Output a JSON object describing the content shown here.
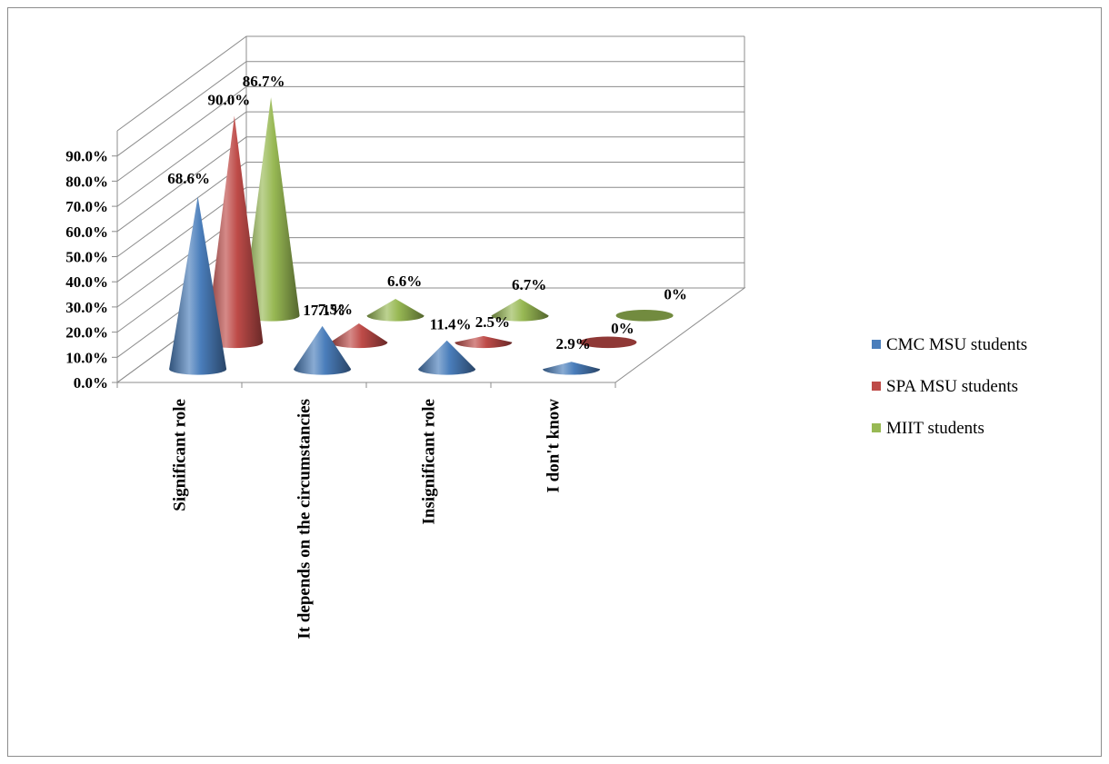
{
  "chart_data": {
    "type": "bar",
    "style": "3d-cone",
    "categories": [
      "Significant role",
      "It depends on the circumstancies",
      "Insignificant role",
      "I don't know"
    ],
    "series": [
      {
        "name": "CMC MSU students",
        "color": "#4a7ebb",
        "values": [
          68.6,
          17.1,
          11.4,
          2.9
        ],
        "labels": [
          "68.6%",
          "17.1%",
          "11.4%",
          "2.9%"
        ]
      },
      {
        "name": "SPA MSU students",
        "color": "#be4b48",
        "values": [
          90.0,
          7.5,
          2.5,
          0
        ],
        "labels": [
          "90.0%",
          "7.5%",
          "2.5%",
          "0%"
        ]
      },
      {
        "name": "MIIT students",
        "color": "#98b954",
        "values": [
          86.7,
          6.6,
          6.7,
          0
        ],
        "labels": [
          "86.7%",
          "6.6%",
          "6.7%",
          "0%"
        ]
      }
    ],
    "y_ticks": [
      "0.0%",
      "10.0%",
      "20.0%",
      "30.0%",
      "40.0%",
      "50.0%",
      "60.0%",
      "70.0%",
      "80.0%",
      "90.0%"
    ],
    "ylim": [
      0,
      100
    ],
    "grid": true,
    "legend_position": "right"
  }
}
